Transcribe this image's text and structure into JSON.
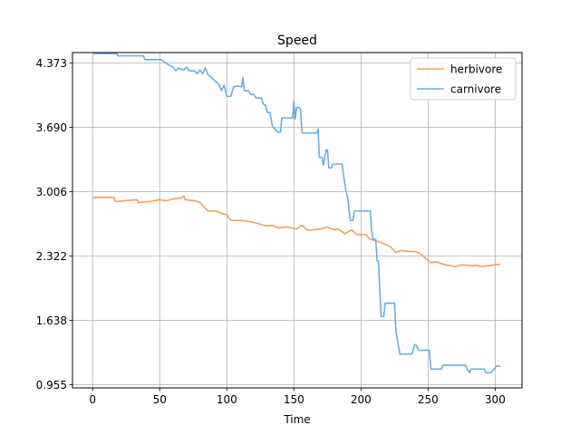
{
  "chart_data": {
    "type": "line",
    "title": "Speed",
    "xlabel": "Time",
    "ylabel": "",
    "xlim": [
      -15,
      320
    ],
    "ylim": [
      0.92,
      4.485
    ],
    "xticks": [
      0,
      50,
      100,
      150,
      200,
      250,
      300
    ],
    "yticks": [
      0.955,
      1.638,
      2.322,
      3.006,
      3.69,
      4.373
    ],
    "ytick_labels": [
      "0.955",
      "1.638",
      "2.322",
      "3.006",
      "3.690",
      "4.373"
    ],
    "grid": true,
    "legend_position": "upper-right",
    "series": [
      {
        "name": "herbivore",
        "color": "#f0a060",
        "points": [
          [
            0,
            2.945
          ],
          [
            8,
            2.945
          ],
          [
            16,
            2.945
          ],
          [
            17,
            2.9
          ],
          [
            25,
            2.91
          ],
          [
            33,
            2.92
          ],
          [
            34,
            2.89
          ],
          [
            42,
            2.9
          ],
          [
            50,
            2.92
          ],
          [
            55,
            2.91
          ],
          [
            60,
            2.93
          ],
          [
            66,
            2.94
          ],
          [
            68,
            2.96
          ],
          [
            69,
            2.92
          ],
          [
            76,
            2.91
          ],
          [
            80,
            2.89
          ],
          [
            86,
            2.8
          ],
          [
            92,
            2.8
          ],
          [
            97,
            2.77
          ],
          [
            100,
            2.76
          ],
          [
            103,
            2.7
          ],
          [
            110,
            2.7
          ],
          [
            116,
            2.69
          ],
          [
            120,
            2.68
          ],
          [
            125,
            2.66
          ],
          [
            130,
            2.64
          ],
          [
            134,
            2.65
          ],
          [
            138,
            2.62
          ],
          [
            145,
            2.63
          ],
          [
            152,
            2.61
          ],
          [
            156,
            2.65
          ],
          [
            160,
            2.6
          ],
          [
            165,
            2.6
          ],
          [
            170,
            2.61
          ],
          [
            175,
            2.63
          ],
          [
            180,
            2.6
          ],
          [
            183,
            2.61
          ],
          [
            188,
            2.56
          ],
          [
            193,
            2.6
          ],
          [
            197,
            2.55
          ],
          [
            203,
            2.55
          ],
          [
            207,
            2.5
          ],
          [
            212,
            2.48
          ],
          [
            216,
            2.46
          ],
          [
            222,
            2.42
          ],
          [
            226,
            2.36
          ],
          [
            230,
            2.38
          ],
          [
            236,
            2.37
          ],
          [
            240,
            2.37
          ],
          [
            244,
            2.35
          ],
          [
            248,
            2.3
          ],
          [
            252,
            2.25
          ],
          [
            256,
            2.26
          ],
          [
            260,
            2.24
          ],
          [
            266,
            2.22
          ],
          [
            270,
            2.21
          ],
          [
            276,
            2.23
          ],
          [
            280,
            2.22
          ],
          [
            286,
            2.22
          ],
          [
            290,
            2.21
          ],
          [
            296,
            2.22
          ],
          [
            300,
            2.23
          ],
          [
            304,
            2.235
          ]
        ]
      },
      {
        "name": "carnivore",
        "color": "#6aade0",
        "points": [
          [
            0,
            4.475
          ],
          [
            18,
            4.475
          ],
          [
            19,
            4.45
          ],
          [
            38,
            4.45
          ],
          [
            39,
            4.41
          ],
          [
            51,
            4.41
          ],
          [
            53,
            4.39
          ],
          [
            56,
            4.36
          ],
          [
            60,
            4.33
          ],
          [
            62,
            4.29
          ],
          [
            64,
            4.32
          ],
          [
            68,
            4.3
          ],
          [
            70,
            4.33
          ],
          [
            72,
            4.29
          ],
          [
            76,
            4.29
          ],
          [
            78,
            4.26
          ],
          [
            80,
            4.3
          ],
          [
            82,
            4.26
          ],
          [
            84,
            4.32
          ],
          [
            86,
            4.25
          ],
          [
            88,
            4.23
          ],
          [
            90,
            4.2
          ],
          [
            94,
            4.15
          ],
          [
            96,
            4.08
          ],
          [
            98,
            4.14
          ],
          [
            100,
            4.02
          ],
          [
            103,
            4.02
          ],
          [
            105,
            4.12
          ],
          [
            108,
            4.13
          ],
          [
            111,
            4.12
          ],
          [
            112,
            4.22
          ],
          [
            113,
            4.08
          ],
          [
            116,
            4.08
          ],
          [
            118,
            4.04
          ],
          [
            120,
            4.04
          ],
          [
            122,
            4.0
          ],
          [
            126,
            4.0
          ],
          [
            127,
            3.94
          ],
          [
            129,
            3.92
          ],
          [
            130,
            3.85
          ],
          [
            132,
            3.85
          ],
          [
            133,
            3.78
          ],
          [
            134,
            3.7
          ],
          [
            136,
            3.67
          ],
          [
            138,
            3.64
          ],
          [
            140,
            3.64
          ],
          [
            141,
            3.79
          ],
          [
            149,
            3.79
          ],
          [
            150,
            3.97
          ],
          [
            151,
            3.78
          ],
          [
            152,
            3.9
          ],
          [
            154,
            3.9
          ],
          [
            155,
            3.88
          ],
          [
            156,
            3.63
          ],
          [
            167,
            3.63
          ],
          [
            168,
            3.67
          ],
          [
            169,
            3.37
          ],
          [
            171,
            3.37
          ],
          [
            172,
            3.29
          ],
          [
            174,
            3.45
          ],
          [
            175,
            3.45
          ],
          [
            176,
            3.26
          ],
          [
            178,
            3.26
          ],
          [
            179,
            3.3
          ],
          [
            186,
            3.3
          ],
          [
            187,
            3.18
          ],
          [
            189,
            3.0
          ],
          [
            190,
            2.95
          ],
          [
            192,
            2.7
          ],
          [
            194,
            2.7
          ],
          [
            195,
            2.8
          ],
          [
            207,
            2.8
          ],
          [
            208,
            2.58
          ],
          [
            209,
            2.5
          ],
          [
            211,
            2.5
          ],
          [
            212,
            2.27
          ],
          [
            213,
            2.27
          ],
          [
            215,
            1.68
          ],
          [
            217,
            1.68
          ],
          [
            218,
            1.82
          ],
          [
            225,
            1.82
          ],
          [
            226,
            1.53
          ],
          [
            229,
            1.28
          ],
          [
            232,
            1.28
          ],
          [
            238,
            1.28
          ],
          [
            240,
            1.38
          ],
          [
            241,
            1.38
          ],
          [
            243,
            1.32
          ],
          [
            251,
            1.32
          ],
          [
            252,
            1.12
          ],
          [
            260,
            1.12
          ],
          [
            261,
            1.16
          ],
          [
            264,
            1.16
          ],
          [
            267,
            1.16
          ],
          [
            270,
            1.16
          ],
          [
            273,
            1.16
          ],
          [
            278,
            1.16
          ],
          [
            279,
            1.12
          ],
          [
            281,
            1.08
          ],
          [
            282,
            1.12
          ],
          [
            292,
            1.12
          ],
          [
            293,
            1.08
          ],
          [
            297,
            1.08
          ],
          [
            299,
            1.12
          ],
          [
            301,
            1.15
          ],
          [
            304,
            1.15
          ]
        ]
      }
    ]
  }
}
